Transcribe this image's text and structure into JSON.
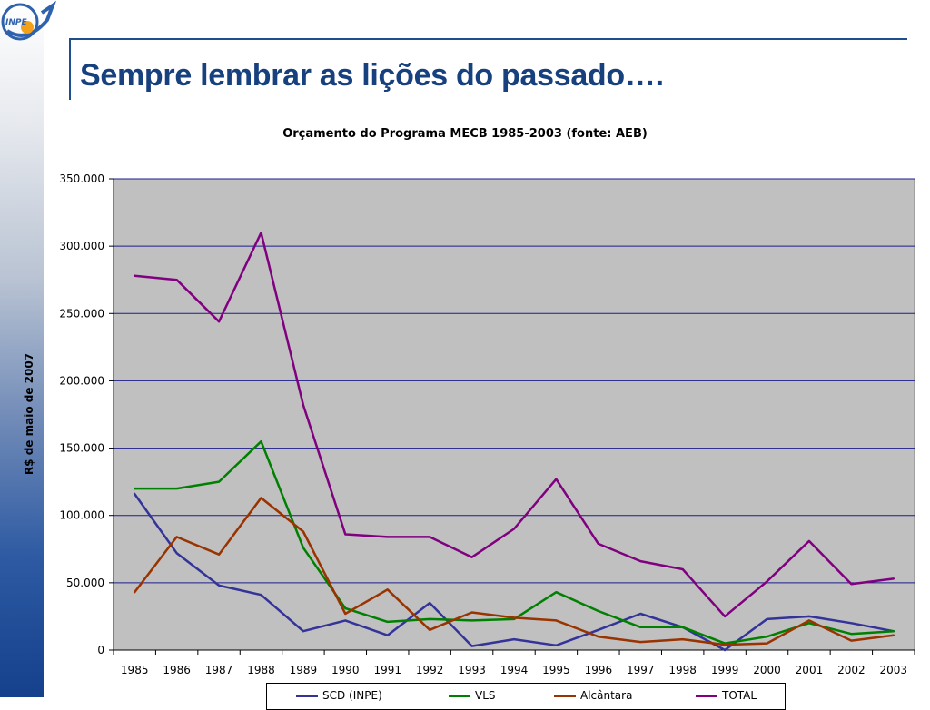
{
  "slide": {
    "title": "Sempre lembrar as lições do passado….",
    "logo_text": "INPE"
  },
  "colors": {
    "title": "#17407e",
    "plot_bg": "#c0c0c0",
    "grid": "#1c1c8c",
    "scd": "#333399",
    "vls": "#008000",
    "alcantara": "#993300",
    "total": "#800080"
  },
  "chart_data": {
    "type": "line",
    "title": "Orçamento do Programa MECB 1985-2003 (fonte: AEB)",
    "xlabel": "",
    "ylabel": "R$ de maio de 2007",
    "ylim": [
      0,
      350000
    ],
    "y_ticks": [
      "0",
      "50.000",
      "100.000",
      "150.000",
      "200.000",
      "250.000",
      "300.000",
      "350.000"
    ],
    "grid": true,
    "legend_position": "bottom",
    "categories": [
      "1985",
      "1986",
      "1987",
      "1988",
      "1989",
      "1990",
      "1991",
      "1992",
      "1993",
      "1994",
      "1995",
      "1996",
      "1997",
      "1998",
      "1999",
      "2000",
      "2001",
      "2002",
      "2003"
    ],
    "series": [
      {
        "name": "SCD (INPE)",
        "values": [
          116000,
          72000,
          48000,
          41000,
          14000,
          22000,
          11000,
          35000,
          3000,
          8000,
          3500,
          15000,
          27000,
          17000,
          0,
          23000,
          25000,
          20000,
          14000
        ]
      },
      {
        "name": "VLS",
        "values": [
          120000,
          120000,
          125000,
          155000,
          76000,
          31000,
          21000,
          23000,
          22000,
          23000,
          43000,
          29000,
          17000,
          17000,
          5000,
          10000,
          20000,
          12000,
          14000
        ]
      },
      {
        "name": "Alcântara",
        "values": [
          43000,
          84000,
          71000,
          113000,
          88000,
          27000,
          45000,
          15000,
          28000,
          24000,
          22000,
          10000,
          6000,
          8000,
          4000,
          5000,
          22000,
          7000,
          11000
        ]
      },
      {
        "name": "TOTAL",
        "values": [
          278000,
          275000,
          244000,
          310000,
          182000,
          86000,
          84000,
          84000,
          69000,
          90000,
          127000,
          79000,
          66000,
          60000,
          25000,
          51000,
          81000,
          49000,
          53000
        ]
      }
    ]
  }
}
